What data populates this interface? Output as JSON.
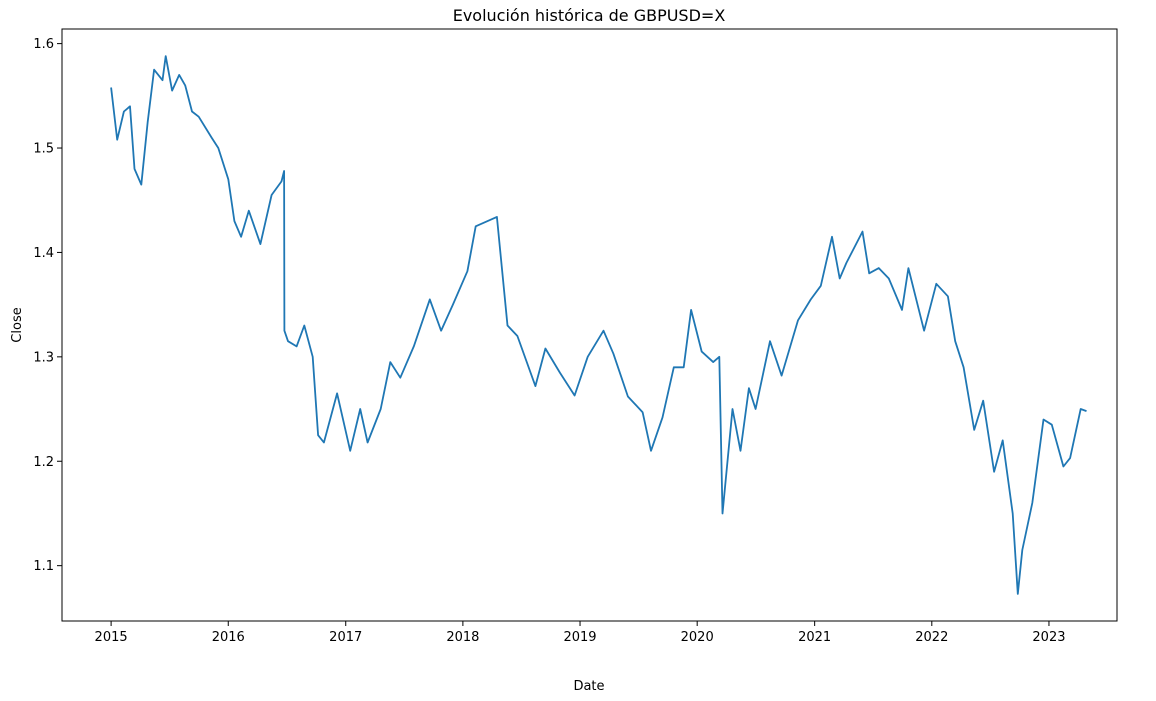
{
  "chart_data": {
    "type": "line",
    "title": "Evolución histórica de GBPUSD=X",
    "xlabel": "Date",
    "ylabel": "Close",
    "grid": false,
    "legend": "none",
    "line_color": "#1f77b4",
    "xlim": [
      "2014-08-01",
      "2023-08-01"
    ],
    "ylim": [
      1.047,
      1.614
    ],
    "x_ticks": [
      "2015-01-01",
      "2016-01-01",
      "2017-01-01",
      "2018-01-01",
      "2019-01-01",
      "2020-01-01",
      "2021-01-01",
      "2022-01-01",
      "2023-01-01"
    ],
    "x_tick_labels": [
      "2015",
      "2016",
      "2017",
      "2018",
      "2019",
      "2020",
      "2021",
      "2022",
      "2023"
    ],
    "y_ticks": [
      1.1,
      1.2,
      1.3,
      1.4,
      1.5,
      1.6
    ],
    "y_tick_labels": [
      "1.1",
      "1.2",
      "1.3",
      "1.4",
      "1.5",
      "1.6"
    ],
    "series": [
      {
        "x": [
          "2015-01-01",
          "2015-01-20",
          "2015-02-10",
          "2015-03-01",
          "2015-03-15",
          "2015-04-05",
          "2015-04-25",
          "2015-05-15",
          "2015-06-10",
          "2015-06-20",
          "2015-07-10",
          "2015-08-01",
          "2015-08-20",
          "2015-09-10",
          "2015-10-01",
          "2015-11-10",
          "2015-12-01",
          "2016-01-01",
          "2016-01-20",
          "2016-02-10",
          "2016-03-05",
          "2016-04-10",
          "2016-05-15",
          "2016-06-15",
          "2016-06-23",
          "2016-06-24",
          "2016-07-05",
          "2016-08-01",
          "2016-08-25",
          "2016-09-20",
          "2016-10-07",
          "2016-10-25",
          "2016-12-05",
          "2017-01-15",
          "2017-02-15",
          "2017-03-10",
          "2017-04-20",
          "2017-05-20",
          "2017-06-20",
          "2017-08-01",
          "2017-09-20",
          "2017-10-25",
          "2017-12-01",
          "2018-01-15",
          "2018-02-10",
          "2018-04-17",
          "2018-05-20",
          "2018-06-20",
          "2018-08-15",
          "2018-09-15",
          "2018-10-30",
          "2018-12-15",
          "2019-01-25",
          "2019-03-15",
          "2019-04-15",
          "2019-05-30",
          "2019-07-15",
          "2019-08-10",
          "2019-09-15",
          "2019-10-20",
          "2019-11-20",
          "2019-12-13",
          "2020-01-15",
          "2020-02-20",
          "2020-03-10",
          "2020-03-20",
          "2020-04-20",
          "2020-05-15",
          "2020-06-10",
          "2020-07-01",
          "2020-08-15",
          "2020-09-20",
          "2020-11-10",
          "2020-12-20",
          "2021-01-20",
          "2021-02-24",
          "2021-03-20",
          "2021-04-10",
          "2021-05-30",
          "2021-06-20",
          "2021-07-20",
          "2021-08-20",
          "2021-09-30",
          "2021-10-20",
          "2021-12-08",
          "2022-01-15",
          "2022-02-20",
          "2022-03-15",
          "2022-04-10",
          "2022-05-13",
          "2022-06-10",
          "2022-07-14",
          "2022-08-10",
          "2022-09-10",
          "2022-09-26",
          "2022-10-10",
          "2022-11-10",
          "2022-12-15",
          "2023-01-10",
          "2023-02-15",
          "2023-03-08",
          "2023-04-10",
          "2023-04-28"
        ],
        "values": [
          1.558,
          1.508,
          1.535,
          1.54,
          1.48,
          1.465,
          1.525,
          1.575,
          1.565,
          1.588,
          1.555,
          1.57,
          1.56,
          1.535,
          1.53,
          1.51,
          1.5,
          1.47,
          1.43,
          1.415,
          1.44,
          1.408,
          1.455,
          1.468,
          1.478,
          1.325,
          1.315,
          1.31,
          1.33,
          1.3,
          1.225,
          1.218,
          1.265,
          1.21,
          1.25,
          1.218,
          1.25,
          1.295,
          1.28,
          1.31,
          1.355,
          1.325,
          1.35,
          1.382,
          1.425,
          1.434,
          1.33,
          1.32,
          1.272,
          1.308,
          1.285,
          1.263,
          1.3,
          1.325,
          1.303,
          1.262,
          1.247,
          1.21,
          1.242,
          1.29,
          1.29,
          1.345,
          1.305,
          1.295,
          1.3,
          1.15,
          1.25,
          1.21,
          1.27,
          1.25,
          1.315,
          1.282,
          1.335,
          1.355,
          1.368,
          1.415,
          1.375,
          1.39,
          1.42,
          1.38,
          1.385,
          1.375,
          1.345,
          1.385,
          1.325,
          1.37,
          1.358,
          1.315,
          1.29,
          1.23,
          1.258,
          1.19,
          1.22,
          1.15,
          1.073,
          1.115,
          1.16,
          1.24,
          1.235,
          1.195,
          1.203,
          1.25,
          1.248
        ]
      }
    ]
  }
}
